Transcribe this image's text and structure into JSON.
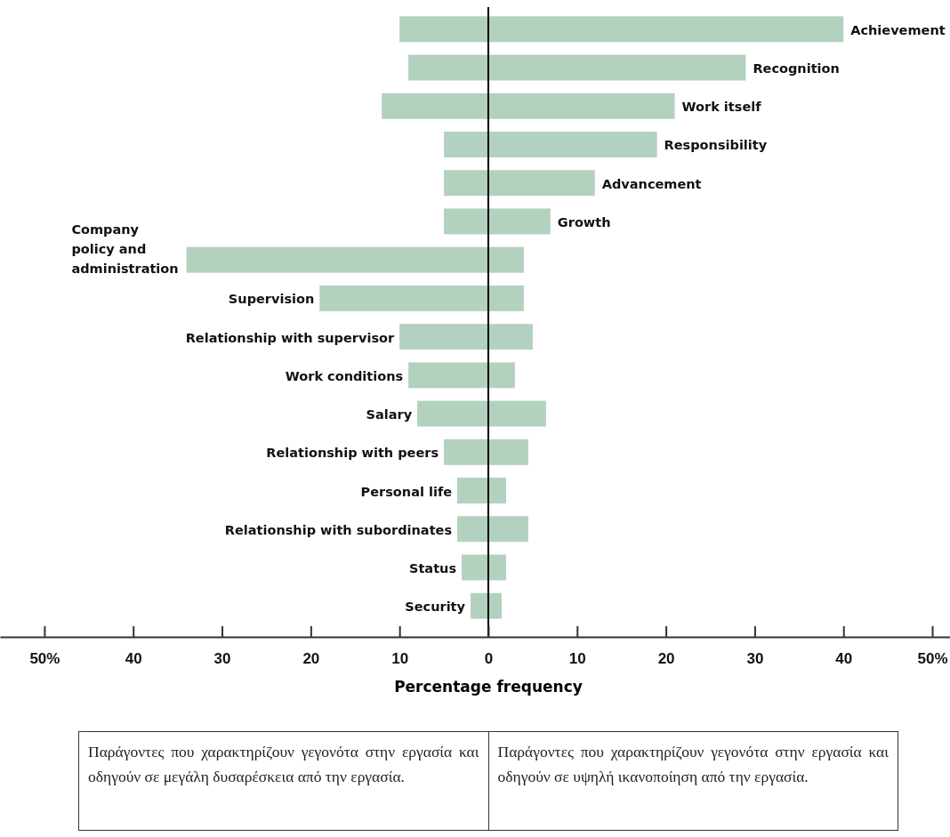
{
  "chart_data": {
    "type": "bar",
    "orientation": "horizontal",
    "xlabel": "Percentage frequency",
    "categories": [
      "Achievement",
      "Recognition",
      "Work itself",
      "Responsibility",
      "Advancement",
      "Growth",
      "Company\npolicy and\nadministration",
      "Supervision",
      "Relationship with supervisor",
      "Work conditions",
      "Salary",
      "Relationship with peers",
      "Personal life",
      "Relationship with subordinates",
      "Status",
      "Security"
    ],
    "series": [
      {
        "color": "#b3d1bf",
        "values": [
          -10,
          -9,
          -12,
          -5,
          -5,
          -5,
          -34,
          -19,
          -10,
          -9,
          -8,
          -5,
          -3.5,
          -3.5,
          -3,
          -2
        ]
      },
      {
        "color": "#b3d1bf",
        "values": [
          40,
          29,
          21,
          19,
          12,
          7,
          4,
          4,
          5,
          3,
          6.5,
          4.5,
          2,
          4.5,
          2,
          1.5
        ]
      }
    ],
    "xlim": [
      -55,
      52
    ],
    "xticks": [
      {
        "value": -50,
        "label": "50%"
      },
      {
        "value": -40,
        "label": "40"
      },
      {
        "value": -30,
        "label": "30"
      },
      {
        "value": -20,
        "label": "20"
      },
      {
        "value": -10,
        "label": "10"
      },
      0,
      10,
      20,
      30,
      40,
      {
        "value": 50,
        "label": "50%"
      }
    ],
    "stacked": true,
    "grid": false,
    "annotations": [
      "Παράγοντες που χαρακτηρίζουν γεγονότα στην εργασία και οδηγούν σε μεγάλη δυσαρέσκεια από την εργασία.",
      "Παράγοντες που χαρακτηρίζουν γεγονότα στην εργασία και οδηγούν σε υψηλή ικανοποίηση από την εργασία."
    ]
  }
}
